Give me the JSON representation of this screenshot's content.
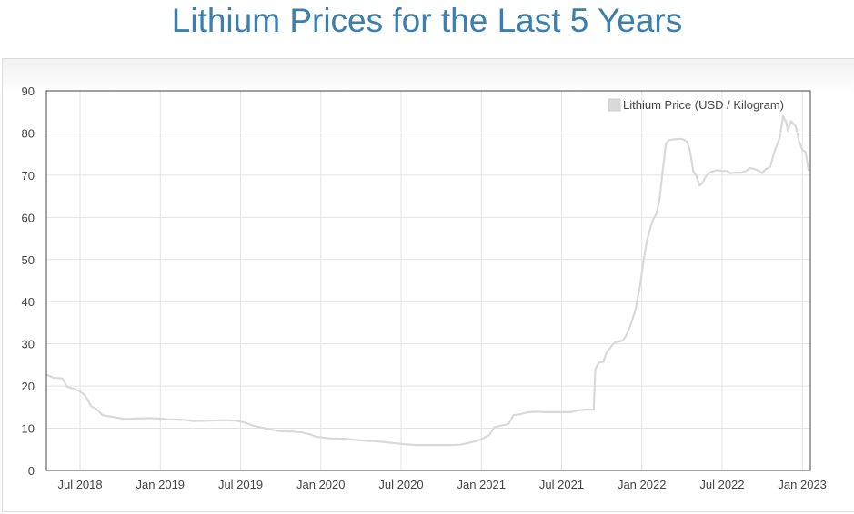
{
  "header": {
    "title": "Lithium Prices for the Last 5 Years"
  },
  "chart_data": {
    "type": "line",
    "title": "Lithium Prices for the Last 5 Years",
    "xlabel": "",
    "ylabel": "",
    "ylim": [
      0,
      90
    ],
    "yticks": [
      "0",
      "10",
      "20",
      "30",
      "40",
      "50",
      "60",
      "70",
      "80",
      "90"
    ],
    "xticks": [
      {
        "label": "Jul 2018",
        "t": 2018.5
      },
      {
        "label": "Jan 2019",
        "t": 2019.0
      },
      {
        "label": "Jul 2019",
        "t": 2019.5
      },
      {
        "label": "Jan 2020",
        "t": 2020.0
      },
      {
        "label": "Jul 2020",
        "t": 2020.5
      },
      {
        "label": "Jan 2021",
        "t": 2021.0
      },
      {
        "label": "Jul 2021",
        "t": 2021.5
      },
      {
        "label": "Jan 2022",
        "t": 2022.0
      },
      {
        "label": "Jul 2022",
        "t": 2022.5
      },
      {
        "label": "Jan 2023",
        "t": 2023.0
      }
    ],
    "xlim": [
      2018.29,
      2023.05
    ],
    "grid": true,
    "legend_position": "top-right",
    "series": [
      {
        "name": "Lithium Price (USD / Kilogram)",
        "color": "#d9d9d9",
        "points": [
          [
            2018.29,
            22.7
          ],
          [
            2018.33,
            22.0
          ],
          [
            2018.39,
            21.8
          ],
          [
            2018.42,
            19.8
          ],
          [
            2018.47,
            19.2
          ],
          [
            2018.5,
            18.7
          ],
          [
            2018.53,
            17.8
          ],
          [
            2018.57,
            15.2
          ],
          [
            2018.6,
            14.6
          ],
          [
            2018.64,
            13.1
          ],
          [
            2018.7,
            12.7
          ],
          [
            2018.78,
            12.2
          ],
          [
            2018.85,
            12.3
          ],
          [
            2018.93,
            12.4
          ],
          [
            2019.0,
            12.3
          ],
          [
            2019.05,
            12.1
          ],
          [
            2019.15,
            12.0
          ],
          [
            2019.2,
            11.7
          ],
          [
            2019.3,
            11.8
          ],
          [
            2019.4,
            11.9
          ],
          [
            2019.47,
            11.8
          ],
          [
            2019.52,
            11.4
          ],
          [
            2019.58,
            10.6
          ],
          [
            2019.65,
            10.0
          ],
          [
            2019.7,
            9.6
          ],
          [
            2019.75,
            9.3
          ],
          [
            2019.82,
            9.2
          ],
          [
            2019.88,
            9.0
          ],
          [
            2019.93,
            8.6
          ],
          [
            2019.97,
            8.0
          ],
          [
            2020.05,
            7.6
          ],
          [
            2020.15,
            7.5
          ],
          [
            2020.25,
            7.1
          ],
          [
            2020.35,
            6.9
          ],
          [
            2020.45,
            6.5
          ],
          [
            2020.52,
            6.2
          ],
          [
            2020.6,
            6.0
          ],
          [
            2020.7,
            6.0
          ],
          [
            2020.82,
            6.0
          ],
          [
            2020.87,
            6.1
          ],
          [
            2020.92,
            6.5
          ],
          [
            2020.97,
            7.0
          ],
          [
            2021.0,
            7.4
          ],
          [
            2021.05,
            8.4
          ],
          [
            2021.08,
            10.2
          ],
          [
            2021.12,
            10.6
          ],
          [
            2021.17,
            11.0
          ],
          [
            2021.2,
            13.1
          ],
          [
            2021.24,
            13.3
          ],
          [
            2021.28,
            13.7
          ],
          [
            2021.33,
            13.9
          ],
          [
            2021.4,
            13.8
          ],
          [
            2021.55,
            13.8
          ],
          [
            2021.6,
            14.2
          ],
          [
            2021.65,
            14.4
          ],
          [
            2021.7,
            14.4
          ],
          [
            2021.71,
            23.9
          ],
          [
            2021.73,
            25.5
          ],
          [
            2021.76,
            25.7
          ],
          [
            2021.78,
            28.0
          ],
          [
            2021.8,
            28.9
          ],
          [
            2021.83,
            30.3
          ],
          [
            2021.88,
            30.8
          ],
          [
            2021.9,
            31.8
          ],
          [
            2021.93,
            34.5
          ],
          [
            2021.96,
            38.0
          ],
          [
            2021.99,
            44.0
          ],
          [
            2022.01,
            49.5
          ],
          [
            2022.03,
            54.2
          ],
          [
            2022.05,
            57.0
          ],
          [
            2022.07,
            59.5
          ],
          [
            2022.09,
            60.8
          ],
          [
            2022.11,
            64.0
          ],
          [
            2022.13,
            71.0
          ],
          [
            2022.15,
            77.5
          ],
          [
            2022.17,
            78.3
          ],
          [
            2022.2,
            78.5
          ],
          [
            2022.25,
            78.6
          ],
          [
            2022.28,
            78.0
          ],
          [
            2022.3,
            76.0
          ],
          [
            2022.32,
            71.0
          ],
          [
            2022.34,
            69.8
          ],
          [
            2022.36,
            67.5
          ],
          [
            2022.38,
            68.3
          ],
          [
            2022.4,
            69.8
          ],
          [
            2022.43,
            70.8
          ],
          [
            2022.47,
            71.2
          ],
          [
            2022.5,
            71.0
          ],
          [
            2022.53,
            71.0
          ],
          [
            2022.55,
            70.5
          ],
          [
            2022.58,
            70.6
          ],
          [
            2022.62,
            70.6
          ],
          [
            2022.65,
            71.0
          ],
          [
            2022.67,
            71.7
          ],
          [
            2022.7,
            71.5
          ],
          [
            2022.73,
            71.0
          ],
          [
            2022.75,
            70.5
          ],
          [
            2022.77,
            71.4
          ],
          [
            2022.8,
            72.0
          ],
          [
            2022.83,
            76.0
          ],
          [
            2022.86,
            79.0
          ],
          [
            2022.88,
            84.0
          ],
          [
            2022.9,
            82.5
          ],
          [
            2022.91,
            80.5
          ],
          [
            2022.93,
            82.8
          ],
          [
            2022.96,
            81.5
          ],
          [
            2022.98,
            78.0
          ],
          [
            2023.0,
            76.0
          ],
          [
            2023.02,
            75.5
          ],
          [
            2023.04,
            71.0
          ]
        ]
      }
    ]
  }
}
